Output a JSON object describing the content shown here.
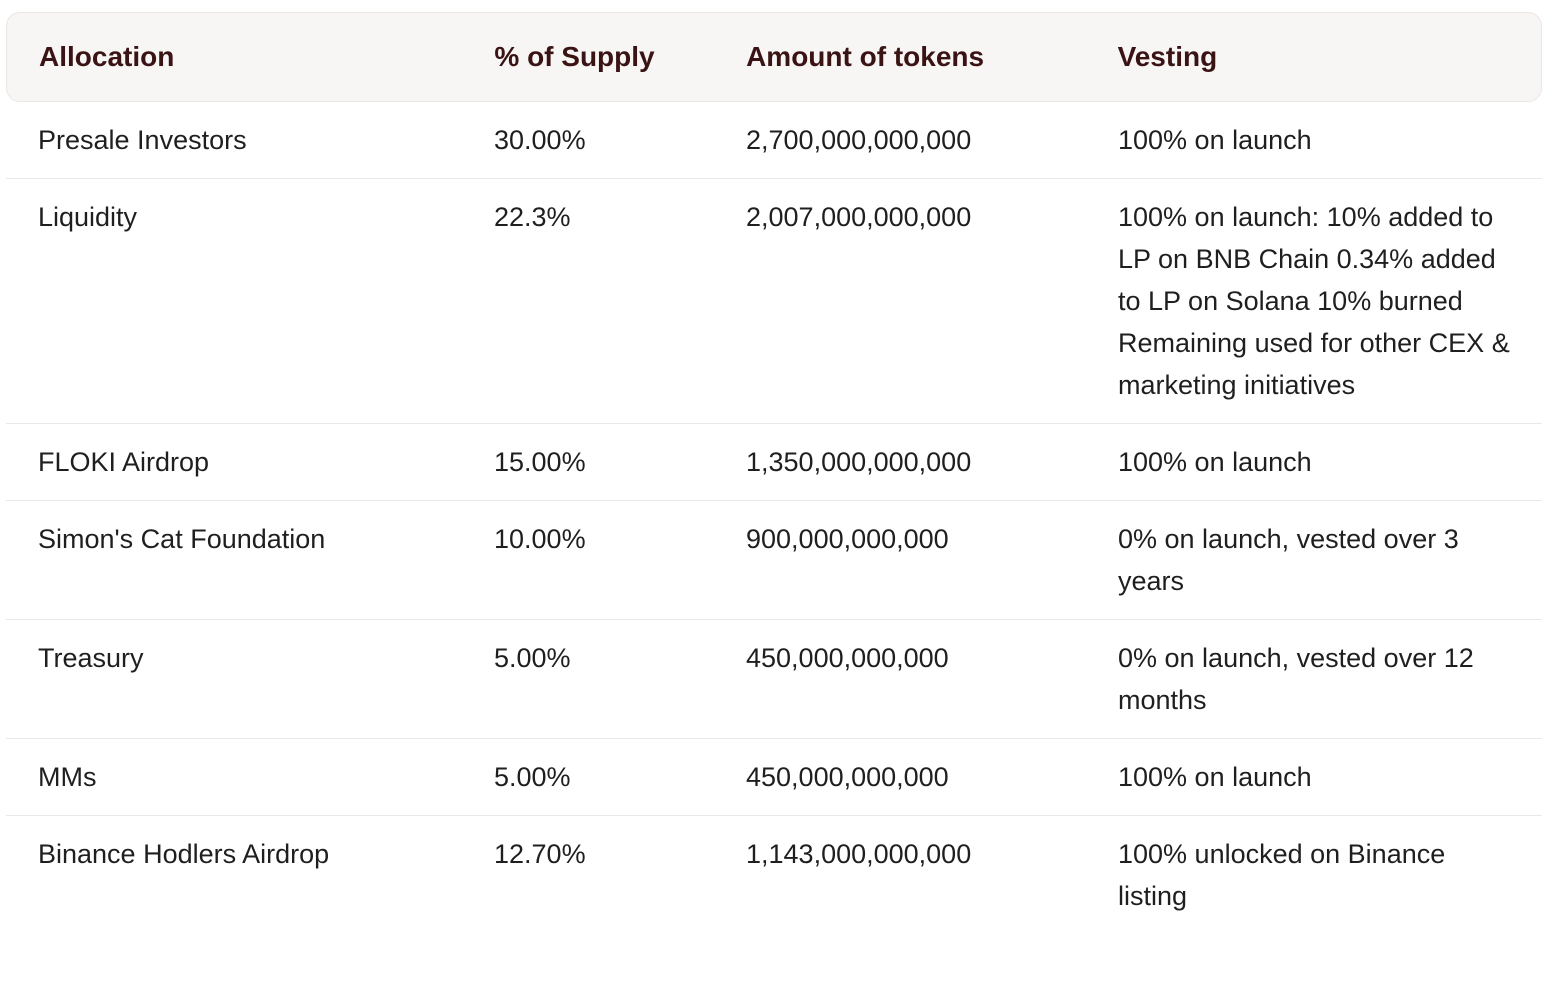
{
  "table": {
    "headers": [
      "Allocation",
      "% of Supply",
      "Amount of tokens",
      "Vesting"
    ],
    "rows": [
      {
        "allocation": "Presale Investors",
        "supply": "30.00%",
        "amount": "2,700,000,000,000",
        "vesting": "100% on launch"
      },
      {
        "allocation": "Liquidity",
        "supply": "22.3%",
        "amount": "2,007,000,000,000",
        "vesting": "100% on launch: 10% added to LP on BNB Chain 0.34% added to LP on Solana 10% burned Remaining used for other CEX & marketing initiatives"
      },
      {
        "allocation": "FLOKI Airdrop",
        "supply": "15.00%",
        "amount": "1,350,000,000,000",
        "vesting": "100% on launch"
      },
      {
        "allocation": "Simon's Cat Foundation",
        "supply": "10.00%",
        "amount": "900,000,000,000",
        "vesting": "0% on launch, vested over 3 years"
      },
      {
        "allocation": "Treasury",
        "supply": "5.00%",
        "amount": "450,000,000,000",
        "vesting": "0% on launch, vested over 12 months"
      },
      {
        "allocation": "MMs",
        "supply": "5.00%",
        "amount": "450,000,000,000",
        "vesting": "100% on launch"
      },
      {
        "allocation": "Binance Hodlers Airdrop",
        "supply": "12.70%",
        "amount": "1,143,000,000,000",
        "vesting": "100% unlocked on Binance listing"
      }
    ]
  }
}
